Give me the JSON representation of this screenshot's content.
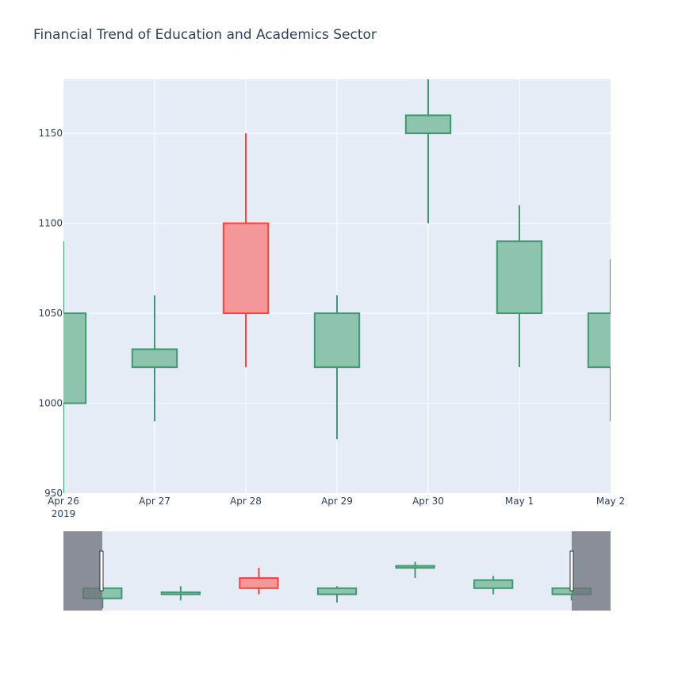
{
  "chart_data": {
    "type": "candlestick",
    "title": "Financial Trend of Education and Academics Sector",
    "x_labels": [
      "Apr 26",
      "Apr 27",
      "Apr 28",
      "Apr 29",
      "Apr 30",
      "May 1",
      "May 2"
    ],
    "x_sublabel": "2019",
    "ylim": [
      950,
      1180
    ],
    "yticks": [
      950,
      1000,
      1050,
      1100,
      1150
    ],
    "grid": true,
    "candles": [
      {
        "date": "Apr 26",
        "open": 1000,
        "high": 1090,
        "low": 950,
        "close": 1050
      },
      {
        "date": "Apr 27",
        "open": 1020,
        "high": 1060,
        "low": 990,
        "close": 1030
      },
      {
        "date": "Apr 28",
        "open": 1100,
        "high": 1150,
        "low": 1020,
        "close": 1050
      },
      {
        "date": "Apr 29",
        "open": 1020,
        "high": 1060,
        "low": 980,
        "close": 1050
      },
      {
        "date": "Apr 30",
        "open": 1150,
        "high": 1180,
        "low": 1100,
        "close": 1160
      },
      {
        "date": "May 1",
        "open": 1050,
        "high": 1110,
        "low": 1020,
        "close": 1090
      },
      {
        "date": "May 2",
        "open": 1020,
        "high": 1080,
        "low": 990,
        "close": 1050
      }
    ],
    "colors": {
      "increasing_line": "#3d9970",
      "increasing_fill": "#8ec3ad",
      "decreasing_line": "#ff4136",
      "decreasing_fill": "#f4979a",
      "plot_bg": "#e5ecf6",
      "grid": "#ffffff",
      "text": "#2a3f5f"
    },
    "rangeslider": true
  }
}
